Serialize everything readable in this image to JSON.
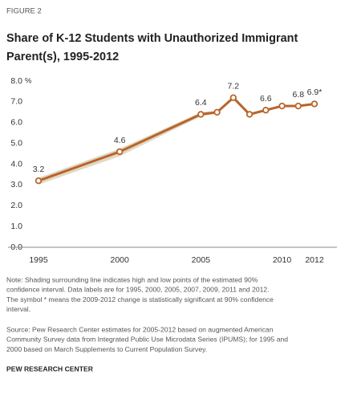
{
  "chart_data": {
    "type": "line",
    "figure_label": "FIGURE 2",
    "title_lines": [
      "Share of K-12 Students with Unauthorized Immigrant",
      "Parent(s), 1995-2012"
    ],
    "x": [
      1995,
      2000,
      2005,
      2006,
      2007,
      2008,
      2009,
      2010,
      2011,
      2012
    ],
    "values": [
      3.2,
      4.6,
      6.4,
      6.5,
      7.2,
      6.4,
      6.6,
      6.8,
      6.8,
      6.9
    ],
    "value_labels": [
      "3.2",
      "4.6",
      "6.4",
      null,
      "7.2",
      null,
      "6.6",
      null,
      "6.8",
      "6.9*"
    ],
    "band_high": [
      3.35,
      4.75,
      6.5,
      6.57,
      7.27,
      6.47,
      6.66,
      6.86,
      6.86,
      6.96
    ],
    "band_low": [
      3.02,
      4.38,
      6.3,
      6.43,
      7.13,
      6.33,
      6.54,
      6.74,
      6.74,
      6.84
    ],
    "color": "#b8652a",
    "band_color": "#e2d8c6",
    "xlim": [
      1995,
      2012
    ],
    "xticks": [
      1995,
      2000,
      2005,
      2010,
      2012
    ],
    "ylim": [
      0,
      8
    ],
    "yticks": [
      {
        "value": 0,
        "label": "0.0"
      },
      {
        "value": 1,
        "label": "1.0"
      },
      {
        "value": 2,
        "label": "2.0"
      },
      {
        "value": 3,
        "label": "3.0"
      },
      {
        "value": 4,
        "label": "4.0"
      },
      {
        "value": 5,
        "label": "5.0"
      },
      {
        "value": 6,
        "label": "6.0"
      },
      {
        "value": 7,
        "label": "7.0"
      },
      {
        "value": 8,
        "label": "8.0"
      }
    ],
    "y_unit": "%",
    "grid": false,
    "note_lines": [
      "Note: Shading surrounding line indicates high and low points of the estimated 90%",
      "confidence interval. Data labels are for 1995, 2000, 2005, 2007, 2009, 2011 and 2012.",
      "The symbol * means the 2009-2012 change is statistically significant at 90% confidence",
      "interval."
    ],
    "source_lines": [
      "Source: Pew Research Center estimates for 2005-2012 based on augmented American",
      "Community Survey data from Integrated Public Use Microdata Series (IPUMS); for 1995 and",
      "2000 based on March Supplements to Current Population Survey."
    ],
    "credit": "PEW RESEARCH CENTER"
  }
}
